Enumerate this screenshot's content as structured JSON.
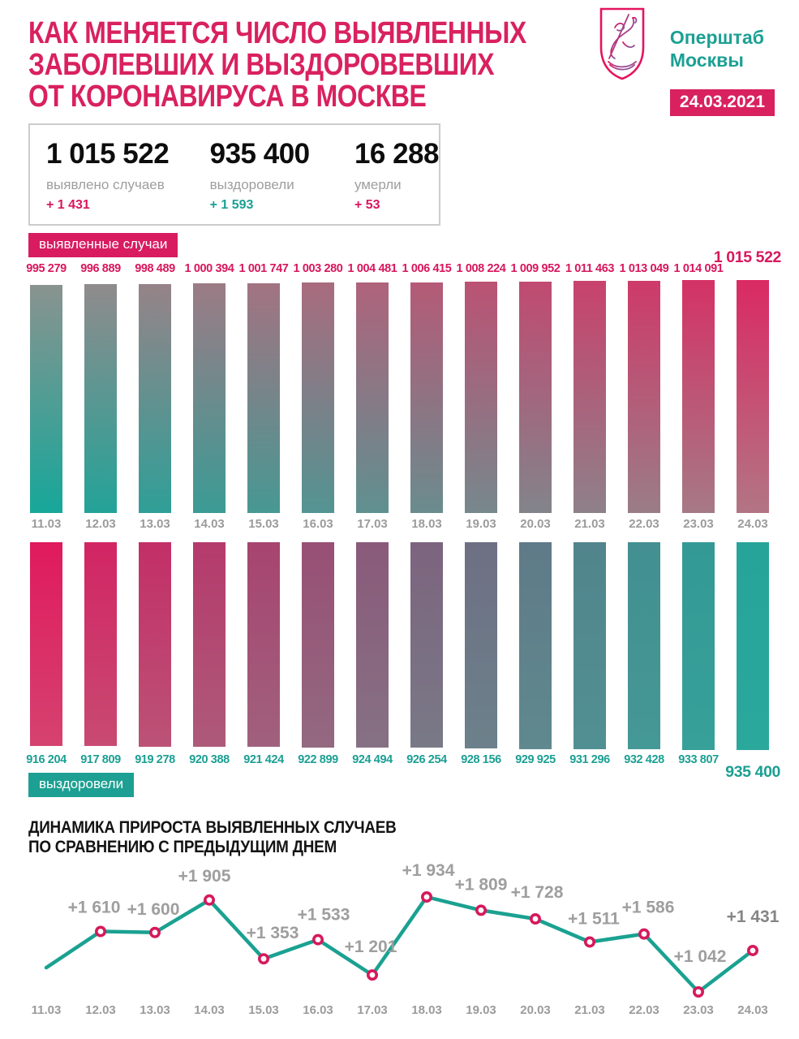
{
  "header": {
    "title_lines": [
      "КАК МЕНЯЕТСЯ ЧИСЛО ВЫЯВЛЕННЫХ",
      "ЗАБОЛЕВШИХ И ВЫЗДОРОВЕВШИХ",
      "ОТ КОРОНАВИРУСА В МОСКВЕ"
    ],
    "org": {
      "line1": "Оперштаб",
      "line2": "Москвы"
    },
    "date_badge": "24.03.2021",
    "logo": "moscow-coat-of-arms-st-george"
  },
  "summary": {
    "cards": [
      {
        "value": "1 015 522",
        "label": "выявлено случаев",
        "delta": "+ 1 431",
        "delta_color": "#d8175c"
      },
      {
        "value": "935 400",
        "label": "выздоровели",
        "delta": "+ 1 593",
        "delta_color": "#1aa093"
      },
      {
        "value": "16 288",
        "label": "умерли",
        "delta": "+ 53",
        "delta_color": "#d8175c"
      }
    ]
  },
  "colors": {
    "pink": "#d91c5f",
    "teal": "#1aa093",
    "gray_text": "#9b9b9b",
    "line": "#1aa191",
    "marker_stroke": "#d6195c",
    "top_bar_top_start": "#8a938f",
    "top_bar_top_end": "#da2a63",
    "top_bar_bottom_start": "#17a79a",
    "top_bar_bottom_end": "#b27584",
    "bottom_bar_top_start": "#e01a5e",
    "bottom_bar_top_end": "#26a49a",
    "bottom_bar_bottom_start": "#d5426f",
    "bottom_bar_bottom_end": "#2aa89c"
  },
  "chart_data": [
    {
      "type": "bar",
      "id": "detected",
      "legend": "выявленные случаи",
      "orientation": "up",
      "categories": [
        "11.03",
        "12.03",
        "13.03",
        "14.03",
        "15.03",
        "16.03",
        "17.03",
        "18.03",
        "19.03",
        "20.03",
        "21.03",
        "22.03",
        "23.03",
        "24.03"
      ],
      "values": [
        995279,
        996889,
        998489,
        1000394,
        1001747,
        1003280,
        1004481,
        1006415,
        1008224,
        1009952,
        1011463,
        1013049,
        1014091,
        1015522
      ],
      "value_labels": [
        "995 279",
        "996 889",
        "998 489",
        "1 000 394",
        "1 001 747",
        "1 003 280",
        "1 004 481",
        "1 006 415",
        "1 008 224",
        "1 009 952",
        "1 011 463",
        "1 013 049",
        "1 014 091",
        "1 015 522"
      ],
      "highlight_last": true
    },
    {
      "type": "bar",
      "id": "recovered",
      "legend": "выздоровели",
      "orientation": "down",
      "categories": [
        "11.03",
        "12.03",
        "13.03",
        "14.03",
        "15.03",
        "16.03",
        "17.03",
        "18.03",
        "19.03",
        "20.03",
        "21.03",
        "22.03",
        "23.03",
        "24.03"
      ],
      "values": [
        916204,
        917809,
        919278,
        920388,
        921424,
        922899,
        924494,
        926254,
        928156,
        929925,
        931296,
        932428,
        933807,
        935400
      ],
      "value_labels": [
        "916 204",
        "917 809",
        "919 278",
        "920 388",
        "921 424",
        "922 899",
        "924 494",
        "926 254",
        "928 156",
        "929 925",
        "931 296",
        "932 428",
        "933 807",
        "935 400"
      ],
      "highlight_last": true
    },
    {
      "type": "line",
      "id": "daily-increase",
      "title_lines": [
        "ДИНАМИКА ПРИРОСТА ВЫЯВЛЕННЫХ СЛУЧАЕВ",
        "ПО СРАВНЕНИЮ С ПРЕДЫДУЩИМ ДНЕМ"
      ],
      "categories": [
        "11.03",
        "12.03",
        "13.03",
        "14.03",
        "15.03",
        "16.03",
        "17.03",
        "18.03",
        "19.03",
        "20.03",
        "21.03",
        "22.03",
        "23.03",
        "24.03"
      ],
      "values": [
        1270,
        1610,
        1600,
        1905,
        1353,
        1533,
        1201,
        1934,
        1809,
        1728,
        1511,
        1586,
        1042,
        1431
      ],
      "point_labels": [
        null,
        "+1 610",
        "+1 600",
        "+1 905",
        "+1 353",
        "+1 533",
        "+1 201",
        "+1 934",
        "+1 809",
        "+1 728",
        "+1 511",
        "+1 586",
        "+1 042",
        "+1 431"
      ],
      "first_point_estimated": true,
      "ylim": [
        1000,
        2000
      ],
      "legend_position": "none",
      "grid": false,
      "label_offsets": [
        null,
        [
          -8,
          -30
        ],
        [
          -2,
          -29
        ],
        [
          -6,
          -30
        ],
        [
          11,
          -32
        ],
        [
          7,
          -31
        ],
        [
          -2,
          -35
        ],
        [
          2,
          -33
        ],
        [
          0,
          -32
        ],
        [
          2,
          -33
        ],
        [
          5,
          -29
        ],
        [
          5,
          -33
        ],
        [
          2,
          -44
        ],
        [
          0,
          -42
        ]
      ]
    }
  ]
}
